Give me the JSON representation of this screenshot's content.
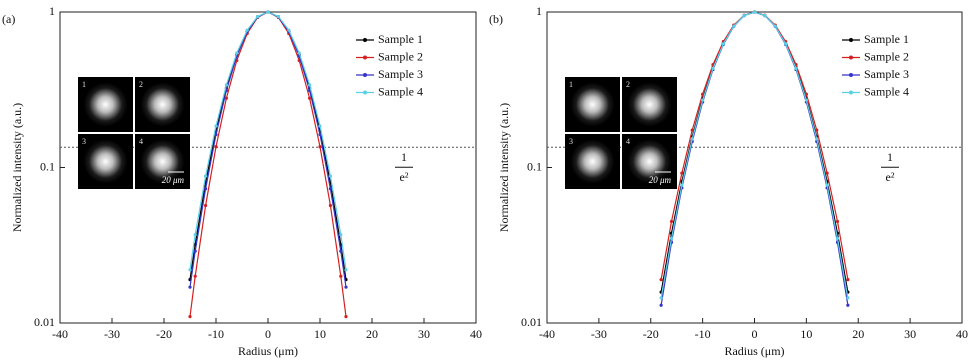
{
  "chart_data": [
    {
      "type": "line",
      "label": "(a)",
      "xlabel": "Radius (μm)",
      "ylabel": "Normalized intensity (a.u.)",
      "xlim": [
        -40,
        40
      ],
      "xticks": [
        -40,
        -30,
        -20,
        -10,
        0,
        10,
        20,
        30,
        40
      ],
      "ylim": [
        0.01,
        1
      ],
      "yticks": [
        0.01,
        0.1,
        1
      ],
      "log_y": true,
      "grid": false,
      "legend": "upper right",
      "reference_line": {
        "value": 0.135,
        "numerator": "1",
        "denominator": "e²"
      },
      "inset_labels": [
        "1",
        "2",
        "3",
        "4"
      ],
      "scale_bar": "20 μm",
      "x": [
        -15,
        -14,
        -12,
        -10,
        -8,
        -6,
        -4,
        -2,
        0,
        2,
        4,
        6,
        8,
        10,
        12,
        14,
        15
      ],
      "series": [
        {
          "name": "Sample 1",
          "color": "#000000",
          "values": [
            0.019,
            0.032,
            0.08,
            0.172,
            0.324,
            0.531,
            0.755,
            0.932,
            1,
            0.932,
            0.755,
            0.531,
            0.324,
            0.172,
            0.08,
            0.032,
            0.019
          ]
        },
        {
          "name": "Sample 2",
          "color": "#d62020",
          "values": [
            0.011,
            0.02,
            0.057,
            0.136,
            0.279,
            0.488,
            0.727,
            0.923,
            1,
            0.923,
            0.727,
            0.488,
            0.279,
            0.136,
            0.057,
            0.02,
            0.011
          ]
        },
        {
          "name": "Sample 3",
          "color": "#3535c8",
          "values": [
            0.017,
            0.029,
            0.073,
            0.163,
            0.313,
            0.52,
            0.748,
            0.93,
            1,
            0.93,
            0.748,
            0.52,
            0.313,
            0.163,
            0.073,
            0.029,
            0.017
          ]
        },
        {
          "name": "Sample 4",
          "color": "#5ad1e6",
          "values": [
            0.022,
            0.037,
            0.088,
            0.185,
            0.34,
            0.545,
            0.764,
            0.935,
            1,
            0.935,
            0.764,
            0.545,
            0.34,
            0.185,
            0.088,
            0.037,
            0.022
          ]
        }
      ]
    },
    {
      "type": "line",
      "label": "(b)",
      "xlabel": "Radius (μm)",
      "ylabel": "Normalized intensity (a.u.)",
      "xlim": [
        -40,
        40
      ],
      "xticks": [
        -40,
        -30,
        -20,
        -10,
        0,
        10,
        20,
        30,
        40
      ],
      "ylim": [
        0.01,
        1
      ],
      "yticks": [
        0.01,
        0.1,
        1
      ],
      "log_y": true,
      "grid": false,
      "legend": "upper right",
      "reference_line": {
        "value": 0.135,
        "numerator": "1",
        "denominator": "e²"
      },
      "inset_labels": [
        "1",
        "2",
        "3",
        "4"
      ],
      "scale_bar": "20 μm",
      "x": [
        -18,
        -16,
        -14,
        -12,
        -10,
        -8,
        -6,
        -4,
        -2,
        0,
        2,
        4,
        6,
        8,
        10,
        12,
        14,
        16,
        18
      ],
      "series": [
        {
          "name": "Sample 1",
          "color": "#000000",
          "values": [
            0.0158,
            0.0378,
            0.0814,
            0.158,
            0.278,
            0.441,
            0.631,
            0.815,
            0.95,
            1,
            0.95,
            0.815,
            0.631,
            0.441,
            0.278,
            0.158,
            0.0814,
            0.0378,
            0.0158
          ]
        },
        {
          "name": "Sample 2",
          "color": "#d62020",
          "values": [
            0.019,
            0.045,
            0.092,
            0.174,
            0.296,
            0.459,
            0.645,
            0.823,
            0.953,
            1,
            0.953,
            0.823,
            0.645,
            0.459,
            0.296,
            0.174,
            0.092,
            0.045,
            0.019
          ]
        },
        {
          "name": "Sample 3",
          "color": "#3535c8",
          "values": [
            0.013,
            0.033,
            0.074,
            0.147,
            0.264,
            0.427,
            0.619,
            0.808,
            0.948,
            1,
            0.948,
            0.808,
            0.619,
            0.427,
            0.264,
            0.147,
            0.074,
            0.033,
            0.013
          ]
        },
        {
          "name": "Sample 4",
          "color": "#5ad1e6",
          "values": [
            0.0145,
            0.035,
            0.077,
            0.153,
            0.271,
            0.434,
            0.625,
            0.812,
            0.949,
            1,
            0.949,
            0.812,
            0.625,
            0.434,
            0.271,
            0.153,
            0.077,
            0.035,
            0.0145
          ]
        }
      ]
    }
  ]
}
